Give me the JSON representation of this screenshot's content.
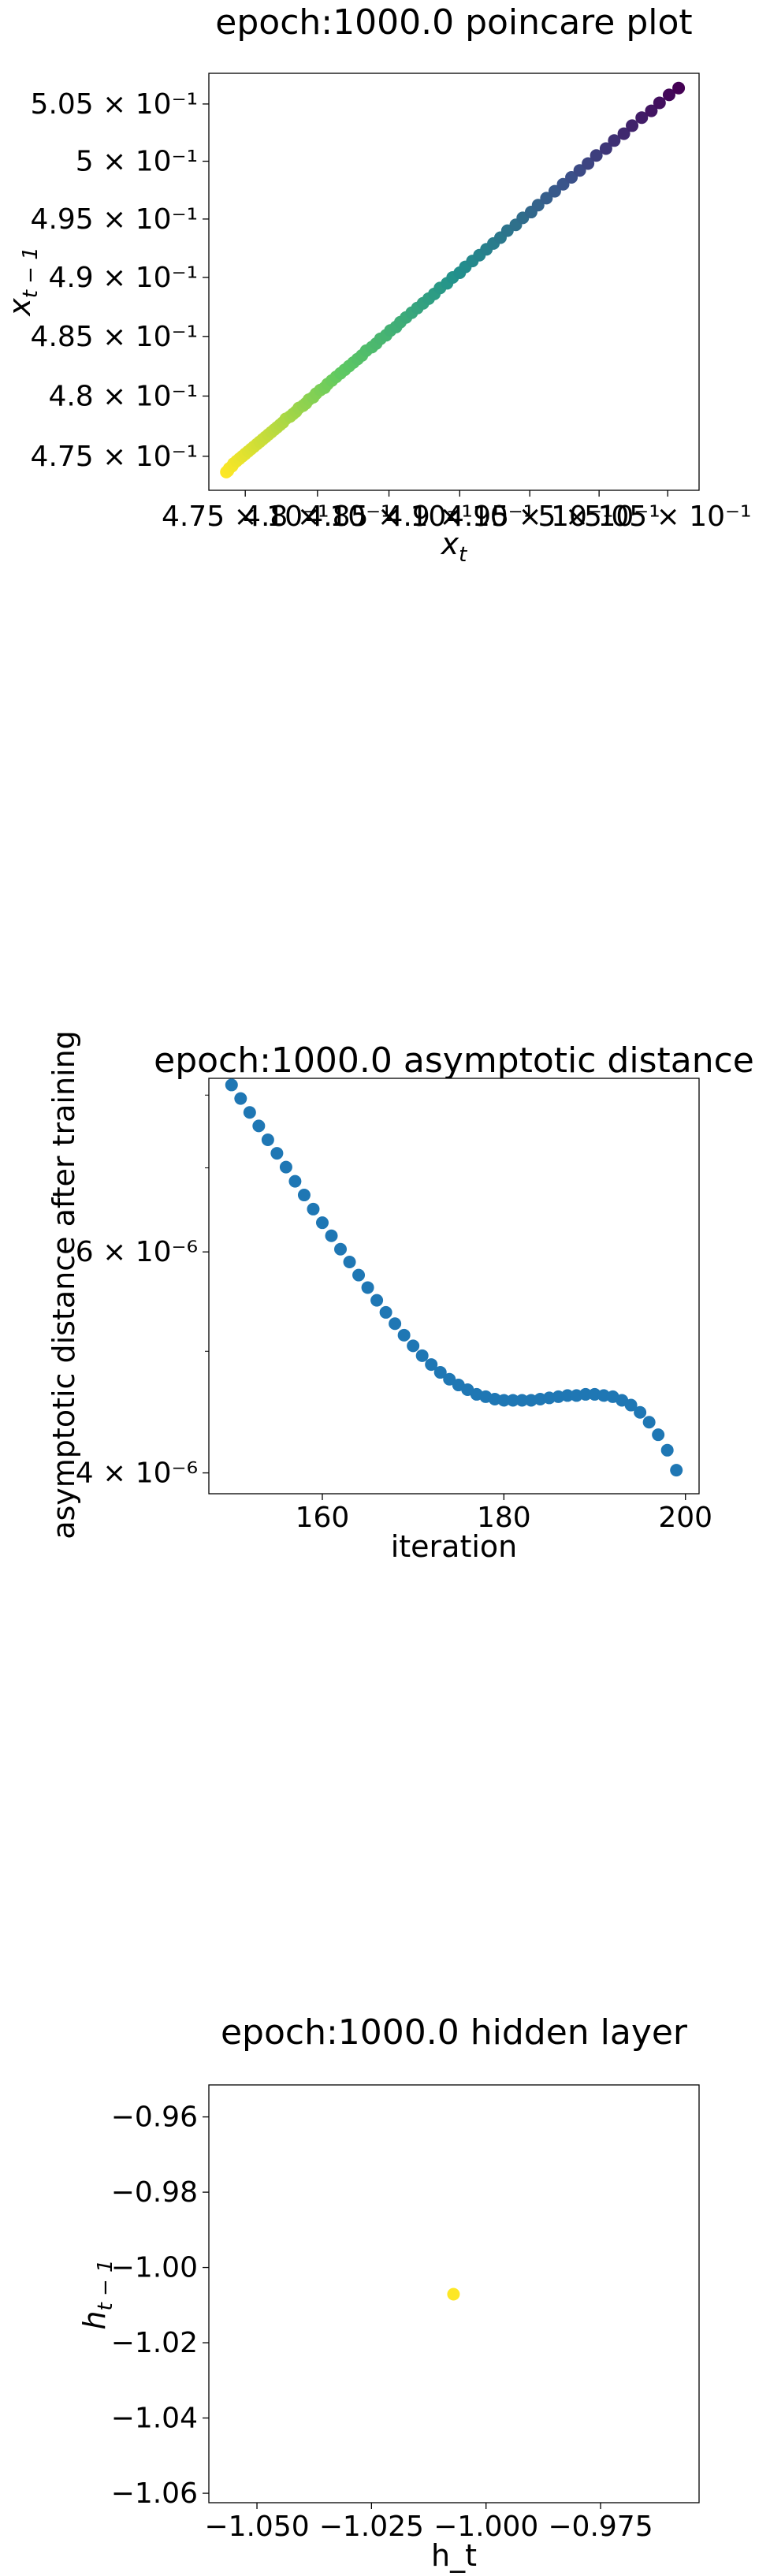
{
  "chart_data": [
    {
      "type": "scatter",
      "title": "epoch:1000.0 poincare plot",
      "xlabel_main": "x",
      "xlabel_sub": "t",
      "ylabel_main": "x",
      "ylabel_sub": "t − 1",
      "scale": "log",
      "xlim": [
        0.4725,
        0.5073
      ],
      "ylim": [
        0.4722,
        0.5077
      ],
      "x_ticks": [
        {
          "value": 0.475,
          "label": "4.75 × 10⁻¹"
        },
        {
          "value": 0.48,
          "label": "4.8 × 10⁻¹"
        },
        {
          "value": 0.485,
          "label": "4.85 × 10⁻¹"
        },
        {
          "value": 0.49,
          "label": "4.9 × 10⁻¹"
        },
        {
          "value": 0.495,
          "label": "4.95 × 10⁻¹"
        },
        {
          "value": 0.5,
          "label": "5 × 10⁻¹"
        },
        {
          "value": 0.505,
          "label": "5.05 × 10⁻¹"
        }
      ],
      "y_ticks": [
        {
          "value": 0.475,
          "label": "4.75 × 10⁻¹"
        },
        {
          "value": 0.48,
          "label": "4.8 × 10⁻¹"
        },
        {
          "value": 0.485,
          "label": "4.85 × 10⁻¹"
        },
        {
          "value": 0.49,
          "label": "4.9 × 10⁻¹"
        },
        {
          "value": 0.495,
          "label": "4.95 × 10⁻¹"
        },
        {
          "value": 0.5,
          "label": "5 × 10⁻¹"
        },
        {
          "value": 0.505,
          "label": "5.05 × 10⁻¹"
        }
      ],
      "colormap": "viridis (dark purple at large values → yellow at small values)",
      "colors": [
        "#440154",
        "#3b528b",
        "#21918c",
        "#5ec962",
        "#fde725"
      ],
      "points": [
        {
          "x": 0.5058,
          "y": 0.5064
        },
        {
          "x": 0.5051,
          "y": 0.5058
        },
        {
          "x": 0.5044,
          "y": 0.5051
        },
        {
          "x": 0.5038,
          "y": 0.5044
        },
        {
          "x": 0.5031,
          "y": 0.5038
        },
        {
          "x": 0.5024,
          "y": 0.5031
        },
        {
          "x": 0.5018,
          "y": 0.5024
        },
        {
          "x": 0.5011,
          "y": 0.5018
        },
        {
          "x": 0.5005,
          "y": 0.5011
        },
        {
          "x": 0.4998,
          "y": 0.5005
        },
        {
          "x": 0.4992,
          "y": 0.4998
        },
        {
          "x": 0.4986,
          "y": 0.4992
        },
        {
          "x": 0.498,
          "y": 0.4986
        },
        {
          "x": 0.4974,
          "y": 0.498
        },
        {
          "x": 0.4968,
          "y": 0.4974
        },
        {
          "x": 0.4962,
          "y": 0.4968
        },
        {
          "x": 0.4956,
          "y": 0.4962
        },
        {
          "x": 0.4951,
          "y": 0.4956
        },
        {
          "x": 0.4945,
          "y": 0.4951
        },
        {
          "x": 0.494,
          "y": 0.4945
        },
        {
          "x": 0.4934,
          "y": 0.494
        },
        {
          "x": 0.4929,
          "y": 0.4934
        },
        {
          "x": 0.4924,
          "y": 0.4929
        },
        {
          "x": 0.4919,
          "y": 0.4924
        },
        {
          "x": 0.4914,
          "y": 0.4919
        },
        {
          "x": 0.4909,
          "y": 0.4914
        },
        {
          "x": 0.4904,
          "y": 0.4909
        },
        {
          "x": 0.49,
          "y": 0.4904
        },
        {
          "x": 0.4895,
          "y": 0.49
        },
        {
          "x": 0.4891,
          "y": 0.4895
        },
        {
          "x": 0.4886,
          "y": 0.4891
        },
        {
          "x": 0.4882,
          "y": 0.4886
        },
        {
          "x": 0.4878,
          "y": 0.4882
        },
        {
          "x": 0.4874,
          "y": 0.4878
        },
        {
          "x": 0.487,
          "y": 0.4874
        },
        {
          "x": 0.4866,
          "y": 0.487
        },
        {
          "x": 0.4862,
          "y": 0.4866
        },
        {
          "x": 0.4858,
          "y": 0.4862
        },
        {
          "x": 0.4855,
          "y": 0.4858
        },
        {
          "x": 0.4851,
          "y": 0.4855
        },
        {
          "x": 0.4848,
          "y": 0.4851
        },
        {
          "x": 0.4844,
          "y": 0.4848
        },
        {
          "x": 0.4841,
          "y": 0.4844
        },
        {
          "x": 0.4838,
          "y": 0.4841
        },
        {
          "x": 0.4834,
          "y": 0.4838
        },
        {
          "x": 0.4831,
          "y": 0.4834
        },
        {
          "x": 0.4828,
          "y": 0.4831
        },
        {
          "x": 0.4825,
          "y": 0.4828
        },
        {
          "x": 0.4822,
          "y": 0.4825
        },
        {
          "x": 0.4819,
          "y": 0.4822
        },
        {
          "x": 0.4816,
          "y": 0.4819
        },
        {
          "x": 0.4813,
          "y": 0.4816
        },
        {
          "x": 0.481,
          "y": 0.4813
        },
        {
          "x": 0.4807,
          "y": 0.481
        },
        {
          "x": 0.4805,
          "y": 0.4807
        },
        {
          "x": 0.4802,
          "y": 0.4805
        },
        {
          "x": 0.4799,
          "y": 0.4802
        },
        {
          "x": 0.4797,
          "y": 0.4799
        },
        {
          "x": 0.4794,
          "y": 0.4797
        },
        {
          "x": 0.4792,
          "y": 0.4794
        },
        {
          "x": 0.479,
          "y": 0.4792
        },
        {
          "x": 0.4787,
          "y": 0.479
        },
        {
          "x": 0.4785,
          "y": 0.4787
        },
        {
          "x": 0.4783,
          "y": 0.4785
        },
        {
          "x": 0.4781,
          "y": 0.4783
        },
        {
          "x": 0.4778,
          "y": 0.4781
        },
        {
          "x": 0.4776,
          "y": 0.4778
        },
        {
          "x": 0.4774,
          "y": 0.4776
        },
        {
          "x": 0.4772,
          "y": 0.4774
        },
        {
          "x": 0.477,
          "y": 0.4772
        },
        {
          "x": 0.4768,
          "y": 0.477
        },
        {
          "x": 0.4766,
          "y": 0.4768
        },
        {
          "x": 0.4764,
          "y": 0.4766
        },
        {
          "x": 0.4762,
          "y": 0.4764
        },
        {
          "x": 0.476,
          "y": 0.4762
        },
        {
          "x": 0.4758,
          "y": 0.476
        },
        {
          "x": 0.4756,
          "y": 0.4758
        },
        {
          "x": 0.4754,
          "y": 0.4756
        },
        {
          "x": 0.4752,
          "y": 0.4754
        },
        {
          "x": 0.475,
          "y": 0.4752
        },
        {
          "x": 0.4748,
          "y": 0.475
        },
        {
          "x": 0.4746,
          "y": 0.4748
        },
        {
          "x": 0.4744,
          "y": 0.4746
        },
        {
          "x": 0.4742,
          "y": 0.4744
        },
        {
          "x": 0.4741,
          "y": 0.4742
        },
        {
          "x": 0.4739,
          "y": 0.474
        },
        {
          "x": 0.4738,
          "y": 0.4738
        },
        {
          "x": 0.4737,
          "y": 0.4737
        }
      ],
      "grid": false
    },
    {
      "type": "scatter",
      "title": "epoch:1000.0 asymptotic distance",
      "xlabel": "iteration",
      "ylabel": "asymptotic distance after training",
      "yscale": "log",
      "color": "#1f77b4",
      "xlim": [
        147.5,
        201.5
      ],
      "ylim": [
        3.85e-06,
        8.25e-06
      ],
      "x_ticks": [
        {
          "value": 160,
          "label": "160"
        },
        {
          "value": 180,
          "label": "180"
        },
        {
          "value": 200,
          "label": "200"
        }
      ],
      "y_ticks": [
        {
          "value": 4e-06,
          "label": "4 × 10⁻⁶"
        },
        {
          "value": 6e-06,
          "label": "6 × 10⁻⁶"
        }
      ],
      "y_minor_ticks": [
        5e-06,
        7e-06,
        8e-06
      ],
      "x": [
        150,
        151,
        152,
        153,
        154,
        155,
        156,
        157,
        158,
        159,
        160,
        161,
        162,
        163,
        164,
        165,
        166,
        167,
        168,
        169,
        170,
        171,
        172,
        173,
        174,
        175,
        176,
        177,
        178,
        179,
        180,
        181,
        182,
        183,
        184,
        185,
        186,
        187,
        188,
        189,
        190,
        191,
        192,
        193,
        194,
        195,
        196,
        197,
        198,
        199
      ],
      "y": [
        8.15e-06,
        7.95e-06,
        7.75e-06,
        7.56e-06,
        7.37e-06,
        7.19e-06,
        7.01e-06,
        6.83e-06,
        6.66e-06,
        6.49e-06,
        6.33e-06,
        6.18e-06,
        6.03e-06,
        5.89e-06,
        5.75e-06,
        5.62e-06,
        5.49e-06,
        5.37e-06,
        5.26e-06,
        5.15e-06,
        5.05e-06,
        4.96e-06,
        4.88e-06,
        4.81e-06,
        4.75e-06,
        4.7e-06,
        4.66e-06,
        4.62e-06,
        4.6e-06,
        4.58e-06,
        4.57e-06,
        4.57e-06,
        4.57e-06,
        4.57e-06,
        4.58e-06,
        4.59e-06,
        4.6e-06,
        4.61e-06,
        4.61e-06,
        4.62e-06,
        4.62e-06,
        4.61e-06,
        4.6e-06,
        4.57e-06,
        4.53e-06,
        4.47e-06,
        4.39e-06,
        4.29e-06,
        4.17e-06,
        4.02e-06
      ],
      "grid": false
    },
    {
      "type": "scatter",
      "title": "epoch:1000.0 hidden layer",
      "xlabel": "h_t",
      "ylabel_main": "h",
      "ylabel_sub": "t − 1",
      "xlim": [
        -1.0605,
        -0.9535
      ],
      "ylim": [
        -1.0625,
        -0.9515
      ],
      "x_ticks": [
        {
          "value": -1.05,
          "label": "−1.050"
        },
        {
          "value": -1.025,
          "label": "−1.025"
        },
        {
          "value": -1.0,
          "label": "−1.000"
        },
        {
          "value": -0.975,
          "label": "−0.975"
        }
      ],
      "y_ticks": [
        {
          "value": -0.96,
          "label": "−0.96"
        },
        {
          "value": -0.98,
          "label": "−0.98"
        },
        {
          "value": -1.0,
          "label": "−1.00"
        },
        {
          "value": -1.02,
          "label": "−1.02"
        },
        {
          "value": -1.04,
          "label": "−1.04"
        },
        {
          "value": -1.06,
          "label": "−1.06"
        }
      ],
      "color": "#fde725",
      "points": [
        {
          "x": -1.0071,
          "y": -1.0071
        }
      ],
      "grid": false
    }
  ]
}
